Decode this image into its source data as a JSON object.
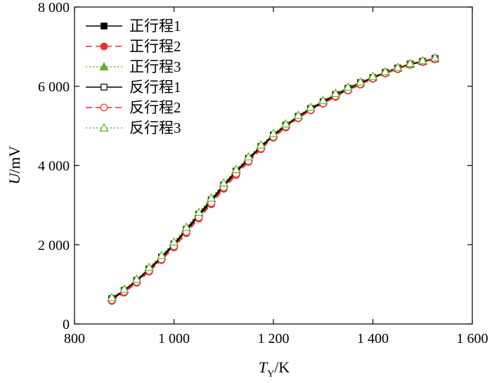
{
  "chart_data": {
    "type": "line",
    "title": "",
    "xlabel": {
      "main": "T",
      "sub": "Y",
      "unit": "/K"
    },
    "ylabel": {
      "main": "U",
      "unit": "/mV"
    },
    "xlim": [
      800,
      1600
    ],
    "ylim": [
      0,
      8000
    ],
    "xticks": [
      800,
      1000,
      1200,
      1400,
      1600
    ],
    "yticks": [
      0,
      2000,
      4000,
      6000,
      8000
    ],
    "xtick_labels": [
      "800",
      "1 000",
      "1 200",
      "1 400",
      "1 600"
    ],
    "ytick_labels": [
      "0",
      "2 000",
      "4 000",
      "6 000",
      "8 000"
    ],
    "grid": false,
    "legend_position": "top-left",
    "x": [
      875,
      900,
      925,
      950,
      975,
      1000,
      1025,
      1050,
      1075,
      1100,
      1125,
      1150,
      1175,
      1200,
      1225,
      1250,
      1275,
      1300,
      1325,
      1350,
      1375,
      1400,
      1425,
      1450,
      1475,
      1500,
      1525
    ],
    "series": [
      {
        "name": "正行程1",
        "color": "#000000",
        "dash": "solid",
        "marker": "square",
        "filled": true,
        "values": [
          620,
          830,
          1080,
          1370,
          1660,
          1990,
          2360,
          2730,
          3090,
          3470,
          3820,
          4150,
          4460,
          4750,
          5000,
          5220,
          5420,
          5590,
          5760,
          5910,
          6060,
          6210,
          6340,
          6450,
          6550,
          6620,
          6690
        ]
      },
      {
        "name": "正行程2",
        "color": "#e8322b",
        "dash": "dashed",
        "marker": "circle",
        "filled": true,
        "values": [
          580,
          790,
          1040,
          1320,
          1610,
          1930,
          2290,
          2660,
          3020,
          3410,
          3760,
          4090,
          4410,
          4700,
          4960,
          5190,
          5390,
          5560,
          5730,
          5890,
          6040,
          6190,
          6320,
          6430,
          6540,
          6610,
          6680
        ]
      },
      {
        "name": "正行程3",
        "color": "#5fb52b",
        "dash": "dotted",
        "marker": "triangle",
        "filled": true,
        "values": [
          650,
          860,
          1110,
          1410,
          1710,
          2050,
          2420,
          2800,
          3160,
          3540,
          3880,
          4200,
          4500,
          4790,
          5030,
          5250,
          5450,
          5620,
          5790,
          5940,
          6080,
          6230,
          6350,
          6460,
          6560,
          6630,
          6710
        ]
      },
      {
        "name": "反行程1",
        "color": "#000000",
        "dash": "solid",
        "marker": "square",
        "filled": false,
        "values": [
          640,
          850,
          1100,
          1390,
          1690,
          2020,
          2390,
          2770,
          3130,
          3510,
          3860,
          4180,
          4480,
          4770,
          5020,
          5240,
          5440,
          5610,
          5790,
          5950,
          6090,
          6220,
          6350,
          6460,
          6560,
          6630,
          6700
        ]
      },
      {
        "name": "反行程2",
        "color": "#e8322b",
        "dash": "dashed",
        "marker": "circle",
        "filled": false,
        "values": [
          600,
          810,
          1060,
          1340,
          1630,
          1960,
          2320,
          2690,
          3050,
          3440,
          3790,
          4110,
          4430,
          4720,
          4980,
          5200,
          5400,
          5570,
          5750,
          5900,
          6050,
          6200,
          6330,
          6440,
          6550,
          6620,
          6690
        ]
      },
      {
        "name": "反行程3",
        "color": "#5fb52b",
        "dash": "dotted",
        "marker": "triangle",
        "filled": false,
        "values": [
          670,
          880,
          1130,
          1430,
          1730,
          2070,
          2440,
          2820,
          3180,
          3560,
          3900,
          4220,
          4520,
          4810,
          5050,
          5270,
          5470,
          5640,
          5820,
          5980,
          6110,
          6250,
          6370,
          6480,
          6580,
          6650,
          6720
        ]
      }
    ]
  }
}
